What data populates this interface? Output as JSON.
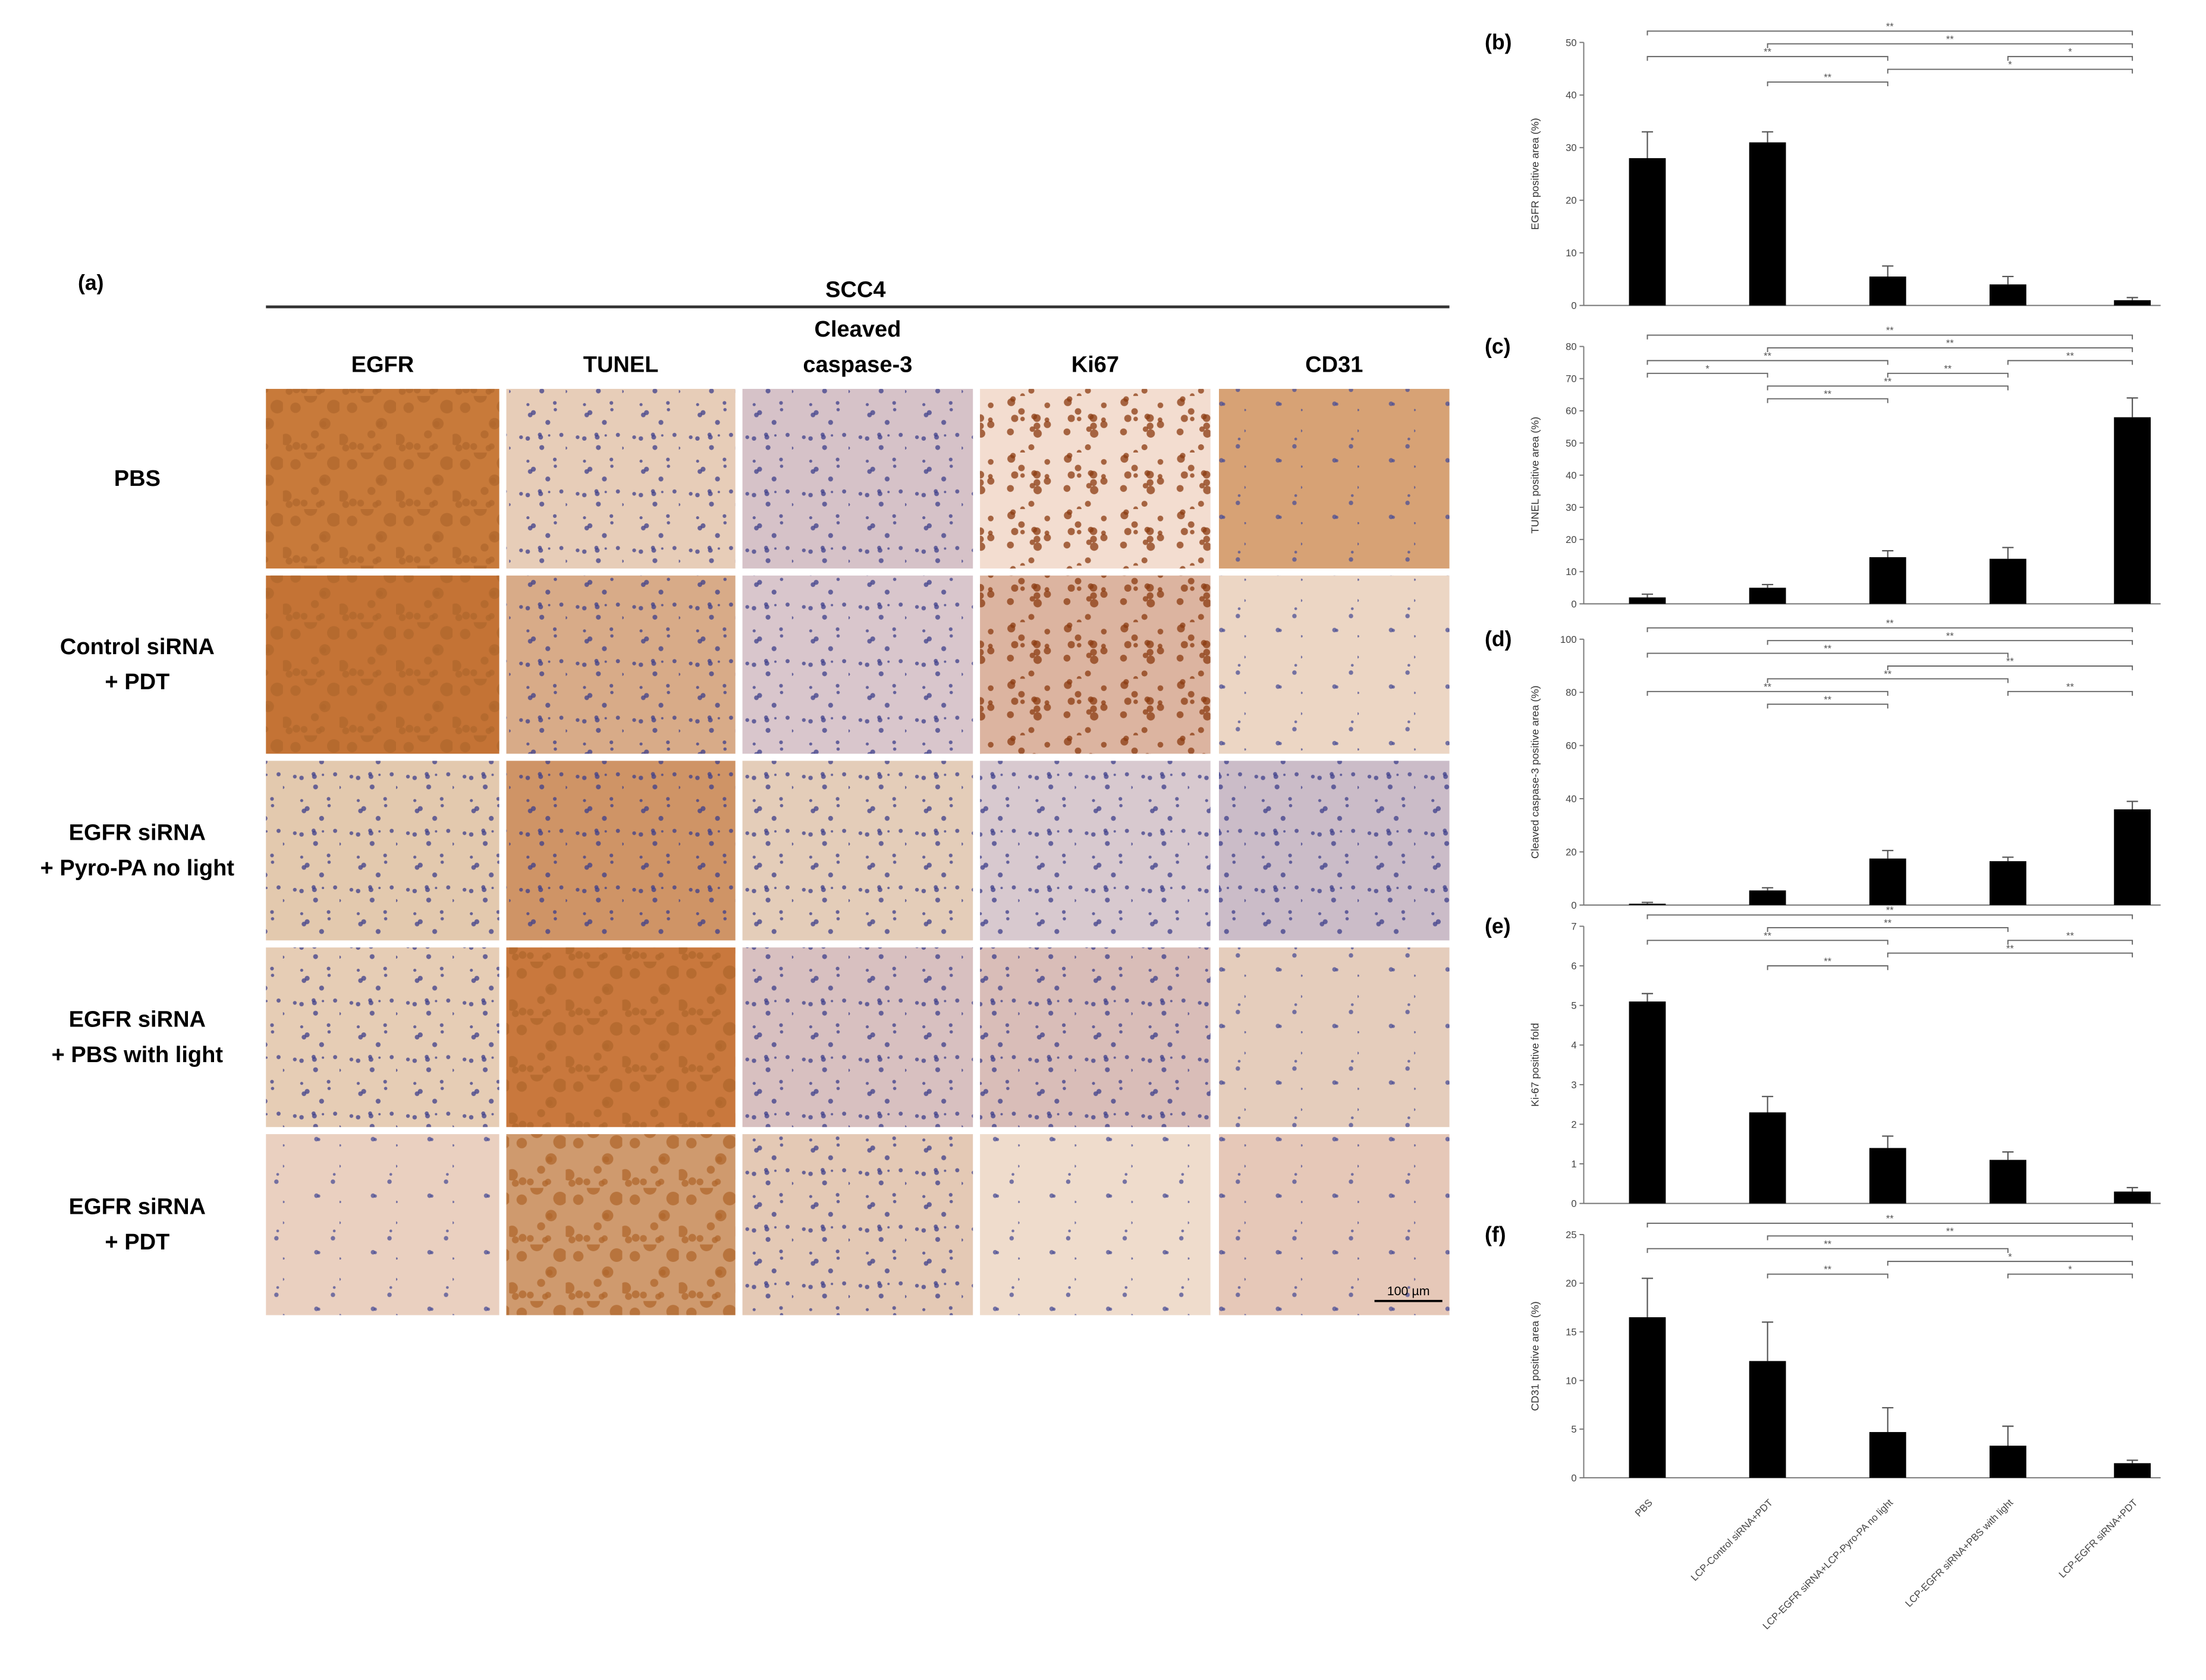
{
  "panel_a": {
    "label": "(a)",
    "title": "SCC4",
    "columns": [
      [
        "EGFR"
      ],
      [
        "TUNEL"
      ],
      [
        "Cleaved",
        "caspase-3"
      ],
      [
        "Ki67"
      ],
      [
        "CD31"
      ]
    ],
    "rows": [
      [
        "PBS"
      ],
      [
        "Control siRNA",
        "+ PDT"
      ],
      [
        "EGFR siRNA",
        "+ Pyro-PA no light"
      ],
      [
        "EGFR siRNA",
        "+ PBS with light"
      ],
      [
        "EGFR siRNA",
        "+ PDT"
      ]
    ],
    "scale_bar": "100 µm"
  },
  "chart_data": [
    {
      "type": "bar",
      "panel_label": "(b)",
      "ylabel": "EGFR  positive area (%)",
      "color": "#000000",
      "values": [
        28,
        31,
        5.5,
        4,
        1
      ],
      "errors": [
        5,
        2,
        2,
        1.5,
        0.5
      ],
      "ylim": [
        0,
        50
      ],
      "yticks": [
        0,
        10,
        20,
        30,
        40,
        50
      ],
      "significance": [
        {
          "pair": [
            0,
            4
          ],
          "label": "**"
        },
        {
          "pair": [
            1,
            4
          ],
          "label": "**"
        },
        {
          "pair": [
            0,
            2
          ],
          "label": "**"
        },
        {
          "pair": [
            2,
            4
          ],
          "label": "*"
        },
        {
          "pair": [
            1,
            2
          ],
          "label": "**"
        },
        {
          "pair": [
            3,
            4
          ],
          "label": "*"
        }
      ]
    },
    {
      "type": "bar",
      "panel_label": "(c)",
      "ylabel": "TUNEL positive area (%)",
      "color": "#000000",
      "values": [
        2,
        5,
        14.5,
        14,
        58
      ],
      "errors": [
        1,
        1,
        2,
        3.5,
        6
      ],
      "ylim": [
        0,
        80
      ],
      "yticks": [
        0,
        10,
        20,
        30,
        40,
        50,
        60,
        70,
        80
      ],
      "significance": [
        {
          "pair": [
            0,
            4
          ],
          "label": "**"
        },
        {
          "pair": [
            1,
            4
          ],
          "label": "**"
        },
        {
          "pair": [
            0,
            2
          ],
          "label": "**"
        },
        {
          "pair": [
            2,
            3
          ],
          "label": "**"
        },
        {
          "pair": [
            1,
            3
          ],
          "label": "**"
        },
        {
          "pair": [
            3,
            4
          ],
          "label": "**"
        },
        {
          "pair": [
            1,
            2
          ],
          "label": "**"
        },
        {
          "pair": [
            0,
            1
          ],
          "label": "*"
        }
      ]
    },
    {
      "type": "bar",
      "panel_label": "(d)",
      "ylabel": "Cleaved caspase-3 positive area (%)",
      "color": "#000000",
      "values": [
        0.5,
        5.5,
        17.5,
        16.5,
        36
      ],
      "errors": [
        0.5,
        1,
        3,
        1.5,
        3
      ],
      "ylim": [
        0,
        100
      ],
      "yticks": [
        0,
        20,
        40,
        60,
        80,
        100
      ],
      "significance": [
        {
          "pair": [
            0,
            4
          ],
          "label": "**"
        },
        {
          "pair": [
            1,
            4
          ],
          "label": "**"
        },
        {
          "pair": [
            0,
            3
          ],
          "label": "**"
        },
        {
          "pair": [
            2,
            4
          ],
          "label": "**"
        },
        {
          "pair": [
            1,
            3
          ],
          "label": "**"
        },
        {
          "pair": [
            0,
            2
          ],
          "label": "**"
        },
        {
          "pair": [
            1,
            2
          ],
          "label": "**"
        },
        {
          "pair": [
            3,
            4
          ],
          "label": "**"
        }
      ]
    },
    {
      "type": "bar",
      "panel_label": "(e)",
      "ylabel": "Ki-67 positive fold",
      "color": "#000000",
      "values": [
        5.1,
        2.3,
        1.4,
        1.1,
        0.3
      ],
      "errors": [
        0.2,
        0.4,
        0.3,
        0.2,
        0.1
      ],
      "ylim": [
        0,
        7
      ],
      "yticks": [
        0,
        1,
        2,
        3,
        4,
        5,
        6,
        7
      ],
      "significance": [
        {
          "pair": [
            0,
            4
          ],
          "label": "**"
        },
        {
          "pair": [
            1,
            3
          ],
          "label": "**"
        },
        {
          "pair": [
            0,
            2
          ],
          "label": "**"
        },
        {
          "pair": [
            2,
            4
          ],
          "label": "**"
        },
        {
          "pair": [
            1,
            2
          ],
          "label": "**"
        },
        {
          "pair": [
            3,
            4
          ],
          "label": "**"
        }
      ]
    },
    {
      "type": "bar",
      "panel_label": "(f)",
      "ylabel": "CD31 positive area (%)",
      "color": "#000000",
      "categories": [
        "PBS",
        "LCP-Control siRNA+PDT",
        "LCP-EGFR siRNA+LCP-Pyro-PA no light",
        "LCP-EGFR siRNA+PBS with light",
        "LCP-EGFR siRNA+PDT"
      ],
      "values": [
        16.5,
        12,
        4.7,
        3.3,
        1.5
      ],
      "errors": [
        4,
        4,
        2.5,
        2,
        0.3
      ],
      "ylim": [
        0,
        25
      ],
      "yticks": [
        0,
        5,
        10,
        15,
        20,
        25
      ],
      "significance": [
        {
          "pair": [
            0,
            4
          ],
          "label": "**"
        },
        {
          "pair": [
            1,
            4
          ],
          "label": "**"
        },
        {
          "pair": [
            0,
            3
          ],
          "label": "**"
        },
        {
          "pair": [
            2,
            4
          ],
          "label": "*"
        },
        {
          "pair": [
            1,
            2
          ],
          "label": "**"
        },
        {
          "pair": [
            3,
            4
          ],
          "label": "*"
        }
      ]
    }
  ]
}
